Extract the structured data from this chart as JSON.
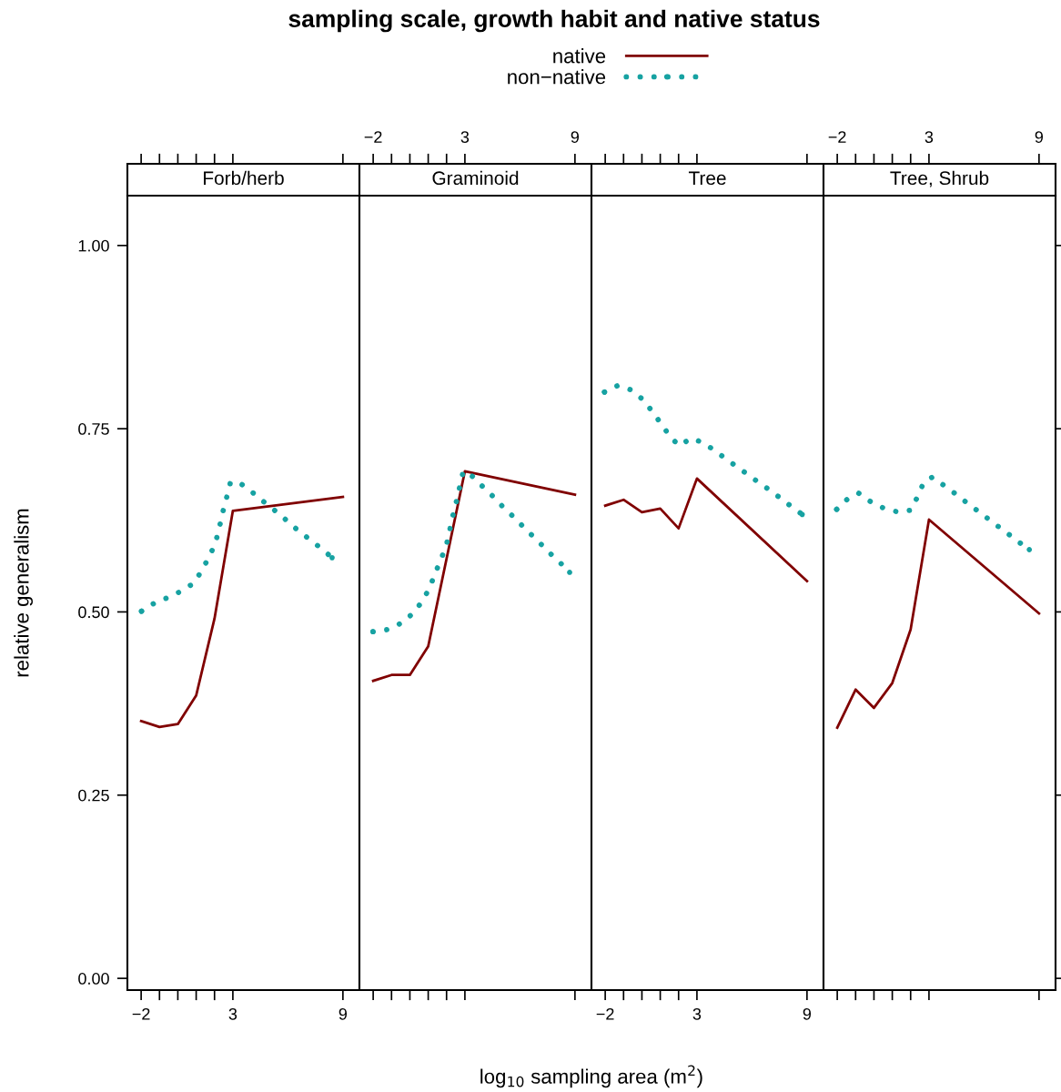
{
  "chart_data": [
    {
      "type": "line",
      "title": "Forb/herb",
      "annotations": [
        "sampling scale, growth habit and native status"
      ],
      "xlabel": "log$_{10}$ sampling area (m$^{2}$)",
      "ylabel": "relative generalism",
      "legend": "top",
      "xlim": [
        -2.75,
        9.9
      ],
      "xticks": [
        -2,
        {
          "value": -1,
          "label": null
        },
        {
          "value": 0,
          "label": null
        },
        {
          "value": 1,
          "label": null
        },
        {
          "value": 2,
          "label": null
        },
        3,
        9
      ],
      "ylim": [
        -0.016,
        1.068
      ],
      "yticks": [
        {
          "value": 0,
          "label": "0.00"
        },
        {
          "value": 0.25,
          "label": "0.25"
        },
        {
          "value": 0.5,
          "label": "0.50"
        },
        {
          "value": 0.75,
          "label": "0.75"
        },
        {
          "value": 1,
          "label": "1.00"
        }
      ],
      "series": [
        {
          "name": "native",
          "color": "#800000",
          "line_style": "solid",
          "x": [
            -2,
            -1,
            0,
            1,
            2,
            3,
            9
          ],
          "values": [
            0.351,
            0.343,
            0.347,
            0.386,
            0.491,
            0.638,
            0.657
          ]
        },
        {
          "name": "non−native",
          "color": "#17a2a2",
          "line_style": "dotted",
          "x": [
            -1.98,
            -1.28,
            -0.5,
            0.24,
            0.91,
            1.33,
            1.73,
            2.06,
            2.27,
            2.45,
            2.65,
            2.86,
            3.27,
            3.93,
            4.55,
            5.21,
            5.83,
            6.47,
            7.13,
            7.75,
            8.41
          ],
          "values": [
            0.501,
            0.512,
            0.52,
            0.529,
            0.54,
            0.558,
            0.576,
            0.595,
            0.616,
            0.636,
            0.655,
            0.676,
            0.678,
            0.666,
            0.653,
            0.64,
            0.627,
            0.613,
            0.6,
            0.588,
            0.574
          ]
        }
      ]
    },
    {
      "type": "line",
      "title": "Graminoid",
      "tick_labels": "x",
      "xlim": [
        -2.75,
        9.9
      ],
      "x2lim": [
        -2.75,
        9.9
      ],
      "x2ticks": [
        -2,
        {
          "value": -1,
          "label": null
        },
        {
          "value": 0,
          "label": null
        },
        {
          "value": 1,
          "label": null
        },
        {
          "value": 2,
          "label": null
        },
        3,
        9
      ],
      "ylim": [
        -0.016,
        1.068
      ],
      "series": [
        {
          "color": "#800000",
          "line_style": "solid",
          "x": [
            -2,
            -1,
            0,
            1,
            3,
            9
          ],
          "values": [
            0.406,
            0.414,
            0.414,
            0.453,
            0.692,
            0.66
          ]
        },
        {
          "color": "#17a2a2",
          "line_style": "dotted",
          "x": [
            -2.01,
            -1.19,
            -0.45,
            0.17,
            0.66,
            1.06,
            1.37,
            1.68,
            1.98,
            2.16,
            2.34,
            2.54,
            2.72,
            2.91,
            3.41,
            4.01,
            4.6,
            5.16,
            5.77,
            6.34,
            6.94,
            7.51,
            8.12,
            8.71
          ],
          "values": [
            0.473,
            0.476,
            0.485,
            0.498,
            0.514,
            0.532,
            0.552,
            0.571,
            0.59,
            0.61,
            0.631,
            0.651,
            0.671,
            0.692,
            0.685,
            0.67,
            0.656,
            0.641,
            0.627,
            0.612,
            0.598,
            0.583,
            0.569,
            0.554
          ]
        }
      ]
    },
    {
      "type": "line",
      "title": "Tree",
      "tick_labels": "x",
      "xlim": [
        -2.75,
        9.9
      ],
      "xticks": [
        -2,
        {
          "value": -1,
          "label": null
        },
        {
          "value": 0,
          "label": null
        },
        {
          "value": 1,
          "label": null
        },
        {
          "value": 2,
          "label": null
        },
        3,
        9
      ],
      "ylim": [
        -0.016,
        1.068
      ],
      "series": [
        {
          "color": "#800000",
          "line_style": "solid",
          "x": [
            -2,
            -1,
            0,
            1,
            2,
            3,
            9
          ],
          "values": [
            0.645,
            0.653,
            0.636,
            0.641,
            0.614,
            0.682,
            0.542
          ]
        },
        {
          "color": "#17a2a2",
          "line_style": "dotted",
          "x": [
            -2.04,
            -1.3,
            -0.6,
            0.04,
            0.55,
            1.04,
            1.52,
            2.01,
            2.72,
            3.41,
            4.08,
            4.74,
            5.41,
            6.07,
            6.76,
            7.41,
            8.09,
            8.74
          ],
          "values": [
            0.8,
            0.809,
            0.803,
            0.79,
            0.774,
            0.757,
            0.74,
            0.727,
            0.737,
            0.73,
            0.718,
            0.706,
            0.694,
            0.682,
            0.67,
            0.658,
            0.645,
            0.633
          ]
        }
      ]
    },
    {
      "type": "line",
      "title": "Tree, Shrub",
      "tick_labels": "x",
      "xlim": [
        -2.75,
        9.9
      ],
      "x2lim": [
        -2.75,
        9.9
      ],
      "x2ticks": [
        -2,
        {
          "value": -1,
          "label": null
        },
        {
          "value": 0,
          "label": null
        },
        {
          "value": 1,
          "label": null
        },
        {
          "value": 2,
          "label": null
        },
        3,
        9
      ],
      "ylim": [
        -0.016,
        1.068
      ],
      "yticks": [
        {
          "value": 0,
          "label": null
        },
        {
          "value": 0.25,
          "label": null
        },
        {
          "value": 0.5,
          "label": null
        },
        {
          "value": 0.75,
          "label": null
        },
        {
          "value": 1,
          "label": null
        }
      ],
      "series": [
        {
          "color": "#800000",
          "line_style": "solid",
          "x": [
            -2,
            -1,
            0,
            1,
            2,
            3,
            9
          ],
          "values": [
            0.342,
            0.394,
            0.369,
            0.403,
            0.476,
            0.626,
            0.498
          ]
        },
        {
          "color": "#17a2a2",
          "line_style": "dotted",
          "x": [
            -2.03,
            -1.44,
            -0.83,
            -0.16,
            0.58,
            1.37,
            2.03,
            2.39,
            2.72,
            3.19,
            3.85,
            4.51,
            5.16,
            5.82,
            6.48,
            7.14,
            7.81,
            8.47
          ],
          "values": [
            0.64,
            0.654,
            0.662,
            0.65,
            0.641,
            0.636,
            0.639,
            0.658,
            0.677,
            0.684,
            0.672,
            0.66,
            0.647,
            0.635,
            0.622,
            0.61,
            0.597,
            0.585
          ]
        }
      ]
    }
  ]
}
